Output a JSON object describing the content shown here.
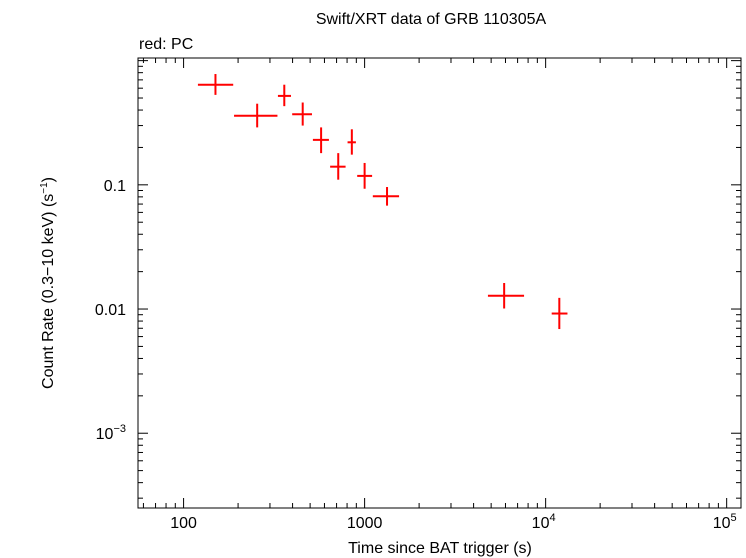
{
  "chart_data": {
    "type": "scatter",
    "title": "Swift/XRT data of GRB 110305A",
    "xlabel": "Time since BAT trigger (s)",
    "ylabel_main": "Count Rate (0.3−10 keV) (s",
    "ylabel_sup": "−1",
    "ylabel_close": ")",
    "xscale": "log",
    "yscale": "log",
    "xlim": [
      56,
      120000
    ],
    "ylim": [
      0.00025,
      1.05
    ],
    "x_ticks": [
      {
        "value": 100,
        "label": "100"
      },
      {
        "value": 1000,
        "label": "1000"
      },
      {
        "value": 10000,
        "base": "10",
        "exp": "4"
      },
      {
        "value": 100000,
        "base": "10",
        "exp": "5"
      }
    ],
    "y_ticks": [
      {
        "value": 0.1,
        "label": "0.1"
      },
      {
        "value": 0.01,
        "label": "0.01"
      },
      {
        "value": 0.001,
        "base": "10",
        "exp": "−3"
      }
    ],
    "legend": "red: PC",
    "series": [
      {
        "name": "PC",
        "color": "#ff0000",
        "points": [
          {
            "x": 150,
            "xlo": 120,
            "xhi": 188,
            "y": 0.64,
            "ylo": 0.53,
            "yhi": 0.78
          },
          {
            "x": 255,
            "xlo": 190,
            "xhi": 330,
            "y": 0.36,
            "ylo": 0.29,
            "yhi": 0.45
          },
          {
            "x": 360,
            "xlo": 332,
            "xhi": 392,
            "y": 0.52,
            "ylo": 0.43,
            "yhi": 0.64
          },
          {
            "x": 455,
            "xlo": 398,
            "xhi": 512,
            "y": 0.37,
            "ylo": 0.3,
            "yhi": 0.46
          },
          {
            "x": 575,
            "xlo": 518,
            "xhi": 635,
            "y": 0.23,
            "ylo": 0.18,
            "yhi": 0.29
          },
          {
            "x": 715,
            "xlo": 645,
            "xhi": 785,
            "y": 0.14,
            "ylo": 0.11,
            "yhi": 0.18
          },
          {
            "x": 850,
            "xlo": 805,
            "xhi": 895,
            "y": 0.22,
            "ylo": 0.175,
            "yhi": 0.28
          },
          {
            "x": 1000,
            "xlo": 910,
            "xhi": 1100,
            "y": 0.118,
            "ylo": 0.093,
            "yhi": 0.15
          },
          {
            "x": 1330,
            "xlo": 1110,
            "xhi": 1550,
            "y": 0.081,
            "ylo": 0.068,
            "yhi": 0.096
          },
          {
            "x": 5900,
            "xlo": 4800,
            "xhi": 7600,
            "y": 0.0128,
            "ylo": 0.0101,
            "yhi": 0.0162
          },
          {
            "x": 11900,
            "xlo": 10800,
            "xhi": 13200,
            "y": 0.0092,
            "ylo": 0.0069,
            "yhi": 0.0123
          }
        ]
      }
    ]
  }
}
